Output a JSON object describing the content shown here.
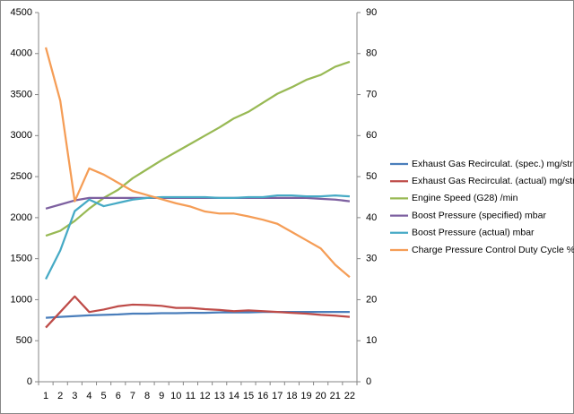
{
  "chart_data": {
    "type": "line",
    "categories": [
      1,
      2,
      3,
      4,
      5,
      6,
      7,
      8,
      9,
      10,
      11,
      12,
      13,
      14,
      15,
      16,
      17,
      18,
      19,
      20,
      21,
      22
    ],
    "ylim": [
      0,
      4500
    ],
    "yticks": [
      0,
      500,
      1000,
      1500,
      2000,
      2500,
      3000,
      3500,
      4000,
      4500
    ],
    "y2lim": [
      0,
      90
    ],
    "y2ticks": [
      0,
      10,
      20,
      30,
      40,
      50,
      60,
      70,
      80,
      90
    ],
    "grid": false,
    "legend": "right",
    "series": [
      {
        "name": "Exhaust Gas Recirculat. (spec.)  mg/str",
        "color": "#4a7ebb",
        "values": [
          780,
          790,
          800,
          810,
          815,
          820,
          830,
          830,
          835,
          835,
          840,
          840,
          845,
          845,
          845,
          850,
          850,
          850,
          850,
          850,
          850,
          850
        ]
      },
      {
        "name": "Exhaust Gas Recirculat. (actual)  mg/str",
        "color": "#be4b48",
        "values": [
          660,
          850,
          1040,
          850,
          880,
          920,
          940,
          935,
          925,
          900,
          900,
          885,
          875,
          860,
          870,
          860,
          850,
          840,
          830,
          815,
          805,
          790
        ]
      },
      {
        "name": "Engine Speed (G28)  /min",
        "color": "#98b954",
        "values": [
          1780,
          1840,
          1960,
          2110,
          2240,
          2340,
          2480,
          2590,
          2700,
          2800,
          2900,
          3000,
          3100,
          3210,
          3290,
          3400,
          3510,
          3590,
          3680,
          3740,
          3840,
          3900
        ]
      },
      {
        "name": "Boost Pressure (specified)  mbar",
        "color": "#7d60a0",
        "values": [
          2110,
          2160,
          2210,
          2240,
          2240,
          2240,
          2240,
          2240,
          2240,
          2240,
          2240,
          2240,
          2240,
          2240,
          2240,
          2240,
          2240,
          2240,
          2240,
          2230,
          2220,
          2200
        ]
      },
      {
        "name": "Boost Pressure (actual)  mbar",
        "color": "#46aac5",
        "values": [
          1250,
          1600,
          2080,
          2220,
          2140,
          2180,
          2220,
          2240,
          2250,
          2250,
          2250,
          2250,
          2240,
          2240,
          2250,
          2250,
          2270,
          2270,
          2260,
          2260,
          2270,
          2260
        ]
      },
      {
        "name": "Charge Pressure Control Duty Cycle  %",
        "color": "#f59d56",
        "axis": "y2",
        "values": [
          81.5,
          68.5,
          44,
          52,
          50.5,
          48.5,
          46.5,
          45.5,
          44.5,
          43.5,
          42.7,
          41.5,
          41,
          41,
          40.3,
          39.5,
          38.5,
          36.5,
          34.5,
          32.5,
          28.5,
          25.5
        ]
      }
    ]
  }
}
